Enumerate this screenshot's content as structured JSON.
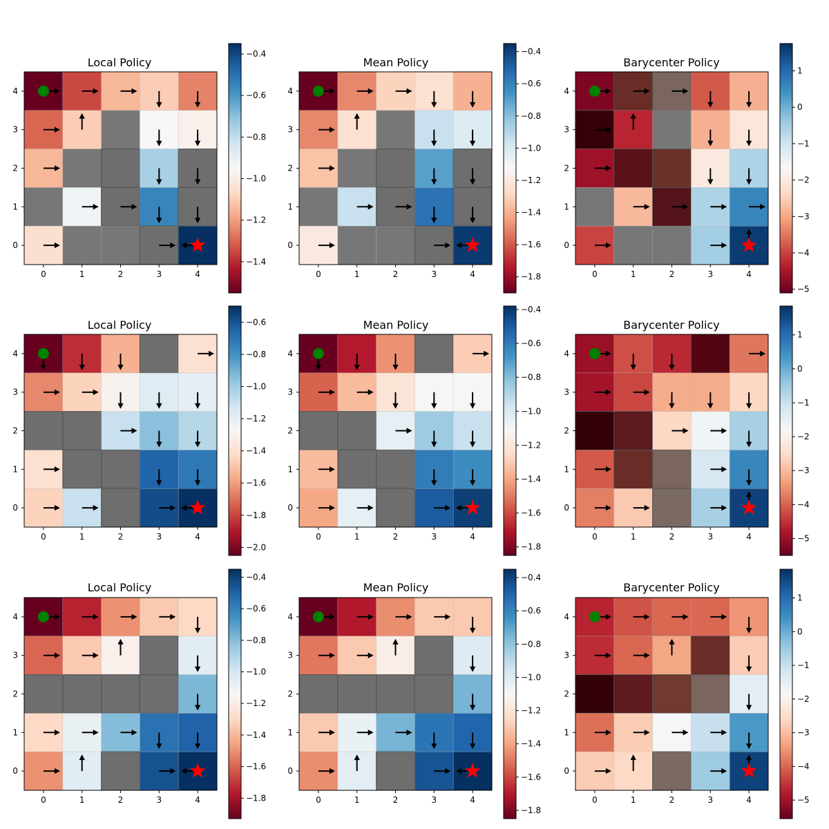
{
  "chart_data": [
    {
      "type": "heatmap",
      "title": "Local Policy",
      "xticks": [
        "0",
        "1",
        "2",
        "3",
        "4"
      ],
      "yticks": [
        "0",
        "1",
        "2",
        "3",
        "4"
      ],
      "colorbar": {
        "range": [
          -1.55,
          -0.35
        ],
        "ticks": [
          "-0.4",
          "-0.6",
          "-0.8",
          "-1.0",
          "-1.2",
          "-1.4"
        ],
        "colormap": "RdBu"
      },
      "grid_rows_top_to_bottom": [
        [
          -1.55,
          -1.35,
          -1.15,
          -1.1,
          -1.25
        ],
        [
          -1.3,
          -1.1,
          null,
          -0.95,
          -0.98
        ],
        [
          -1.15,
          null,
          null,
          -0.75,
          -0.8
        ],
        [
          null,
          -0.92,
          -0.7,
          -0.55,
          -0.55
        ],
        [
          -1.05,
          null,
          null,
          -0.4,
          -0.35
        ]
      ],
      "arrows_rows_top_to_bottom": [
        [
          "right",
          "right",
          "right",
          "down",
          "down"
        ],
        [
          "right",
          "up",
          "",
          "down",
          "down"
        ],
        [
          "right",
          "",
          "",
          "down",
          "down"
        ],
        [
          "",
          "right",
          "right",
          "down",
          "down"
        ],
        [
          "right",
          "",
          "",
          "right",
          "left"
        ]
      ],
      "walls": [
        [
          3,
          0
        ],
        [
          2,
          1
        ],
        [
          2,
          2
        ],
        [
          4,
          1
        ],
        [
          4,
          2
        ]
      ],
      "start": [
        0,
        4
      ],
      "goal": [
        4,
        0
      ]
    },
    {
      "type": "heatmap",
      "title": "Mean Policy",
      "xticks": [
        "0",
        "1",
        "2",
        "3",
        "4"
      ],
      "yticks": [
        "0",
        "1",
        "2",
        "3",
        "4"
      ],
      "colorbar": {
        "range": [
          -1.9,
          -0.35
        ],
        "ticks": [
          "-0.4",
          "-0.6",
          "-0.8",
          "-1.0",
          "-1.2",
          "-1.4",
          "-1.6",
          "-1.8"
        ],
        "colormap": "RdBu"
      },
      "grid_rows_top_to_bottom": [
        [
          -1.9,
          -1.5,
          -1.3,
          -1.25,
          -1.4
        ],
        [
          -1.5,
          -1.25,
          null,
          -0.95,
          -1.02
        ],
        [
          -1.35,
          null,
          null,
          -0.7,
          -0.78
        ],
        [
          null,
          -0.95,
          -0.72,
          -0.55,
          -0.55
        ],
        [
          -1.2,
          null,
          null,
          -0.45,
          -0.38
        ]
      ],
      "arrows_rows_top_to_bottom": [
        [
          "right",
          "right",
          "right",
          "down",
          "down"
        ],
        [
          "right",
          "up",
          "",
          "down",
          "down"
        ],
        [
          "right",
          "",
          "",
          "down",
          "down"
        ],
        [
          "",
          "right",
          "right",
          "down",
          "down"
        ],
        [
          "right",
          "",
          "",
          "right",
          "left"
        ]
      ],
      "walls": [
        [
          3,
          0
        ],
        [
          2,
          1
        ],
        [
          2,
          2
        ],
        [
          4,
          1
        ],
        [
          4,
          2
        ]
      ],
      "start": [
        0,
        4
      ],
      "goal": [
        4,
        0
      ]
    },
    {
      "type": "heatmap",
      "title": "Barycenter Policy",
      "xticks": [
        "0",
        "1",
        "2",
        "3",
        "4"
      ],
      "yticks": [
        "0",
        "1",
        "2",
        "3",
        "4"
      ],
      "colorbar": {
        "range": [
          -5.1,
          1.75
        ],
        "ticks": [
          "1",
          "0",
          "-1",
          "-2",
          "-3",
          "-4",
          "-5"
        ],
        "colormap": "RdBu"
      },
      "grid_rows_top_to_bottom": [
        [
          -4.9,
          -4.8,
          -4.5,
          -3.8,
          -2.9
        ],
        [
          -4.8,
          -4.3,
          null,
          -2.9,
          -2.1
        ],
        [
          -4.6,
          null,
          null,
          -2.0,
          -0.6
        ],
        [
          null,
          -2.8,
          -2.0,
          -0.6,
          0.6
        ],
        [
          -4.0,
          null,
          null,
          -0.5,
          1.6
        ]
      ],
      "arrows_rows_top_to_bottom": [
        [
          "right",
          "right",
          "right",
          "down",
          "down"
        ],
        [
          "right",
          "up",
          "",
          "down",
          "down"
        ],
        [
          "right",
          "",
          "",
          "down",
          "down"
        ],
        [
          "",
          "right",
          "right",
          "right",
          "right"
        ],
        [
          "right",
          "",
          "",
          "right",
          "up"
        ]
      ],
      "walls": [
        [
          2,
          1
        ],
        [
          1,
          2
        ],
        [
          2,
          2
        ],
        [
          0,
          3
        ],
        [
          1,
          4
        ],
        [
          2,
          4
        ]
      ],
      "wall_colors": {
        "2,1": "#55141b",
        "1,2": "#5a1218",
        "2,2": "#6b3228",
        "0,3": "#350008",
        "1,4": "#6a2c26",
        "2,4": "#7a665e"
      },
      "start": [
        0,
        4
      ],
      "goal": [
        4,
        0
      ]
    },
    {
      "type": "heatmap",
      "title": "Local Policy",
      "xticks": [
        "0",
        "1",
        "2",
        "3",
        "4"
      ],
      "yticks": [
        "0",
        "1",
        "2",
        "3",
        "4"
      ],
      "colorbar": {
        "range": [
          -2.05,
          -0.5
        ],
        "ticks": [
          "-0.6",
          "-0.8",
          "-1.0",
          "-1.2",
          "-1.4",
          "-1.6",
          "-1.8",
          "-2.0"
        ],
        "colormap": "RdBu"
      },
      "grid_rows_top_to_bottom": [
        [
          -2.05,
          -1.85,
          -1.55,
          null,
          -1.4
        ],
        [
          -1.65,
          -1.45,
          -1.3,
          -1.18,
          -1.2
        ],
        [
          null,
          null,
          -1.1,
          -0.95,
          -1.05
        ],
        [
          -1.4,
          null,
          null,
          -0.65,
          -0.72
        ],
        [
          -1.45,
          -1.1,
          null,
          -0.58,
          -0.5
        ]
      ],
      "arrows_rows_top_to_bottom": [
        [
          "down",
          "down",
          "down",
          "",
          "right"
        ],
        [
          "right",
          "right",
          "down",
          "down",
          "down"
        ],
        [
          "",
          "",
          "right",
          "down",
          "down"
        ],
        [
          "right",
          "",
          "",
          "down",
          "down"
        ],
        [
          "right",
          "right",
          "",
          "right",
          "left"
        ]
      ],
      "walls": [
        [
          3,
          4
        ],
        [
          0,
          2
        ],
        [
          1,
          2
        ],
        [
          1,
          1
        ],
        [
          2,
          1
        ],
        [
          2,
          0
        ]
      ],
      "start": [
        0,
        4
      ],
      "goal": [
        4,
        0
      ]
    },
    {
      "type": "heatmap",
      "title": "Mean Policy",
      "xticks": [
        "0",
        "1",
        "2",
        "3",
        "4"
      ],
      "yticks": [
        "0",
        "1",
        "2",
        "3",
        "4"
      ],
      "colorbar": {
        "range": [
          -1.85,
          -0.38
        ],
        "ticks": [
          "-0.4",
          "-0.6",
          "-0.8",
          "-1.0",
          "-1.2",
          "-1.4",
          "-1.6",
          "-1.8"
        ],
        "colormap": "RdBu"
      },
      "grid_rows_top_to_bottom": [
        [
          -1.85,
          -1.7,
          -1.45,
          null,
          -1.3
        ],
        [
          -1.55,
          -1.35,
          -1.22,
          -1.12,
          -1.12
        ],
        [
          null,
          null,
          -1.05,
          -0.85,
          -0.95
        ],
        [
          -1.35,
          null,
          null,
          -0.6,
          -0.65
        ],
        [
          -1.4,
          -1.05,
          null,
          -0.5,
          -0.42
        ]
      ],
      "arrows_rows_top_to_bottom": [
        [
          "down",
          "down",
          "down",
          "",
          "right"
        ],
        [
          "right",
          "right",
          "down",
          "down",
          "down"
        ],
        [
          "",
          "",
          "right",
          "down",
          "down"
        ],
        [
          "right",
          "",
          "",
          "down",
          "down"
        ],
        [
          "right",
          "right",
          "",
          "right",
          "left"
        ]
      ],
      "walls": [
        [
          3,
          4
        ],
        [
          0,
          2
        ],
        [
          1,
          2
        ],
        [
          1,
          1
        ],
        [
          2,
          1
        ],
        [
          2,
          0
        ]
      ],
      "start": [
        0,
        4
      ],
      "goal": [
        4,
        0
      ]
    },
    {
      "type": "heatmap",
      "title": "Barycenter Policy",
      "xticks": [
        "0",
        "1",
        "2",
        "3",
        "4"
      ],
      "yticks": [
        "0",
        "1",
        "2",
        "3",
        "4"
      ],
      "colorbar": {
        "range": [
          -5.5,
          1.85
        ],
        "ticks": [
          "1",
          "0",
          "-1",
          "-2",
          "-3",
          "-4",
          "-5"
        ],
        "colormap": "RdBu"
      },
      "grid_rows_top_to_bottom": [
        [
          -5.0,
          -4.2,
          -4.6,
          null,
          -3.8
        ],
        [
          -4.9,
          -4.3,
          -3.2,
          -3.2,
          -2.6
        ],
        [
          null,
          null,
          -2.6,
          -1.7,
          -0.6
        ],
        [
          -4.1,
          null,
          null,
          -1.2,
          0.6
        ],
        [
          -3.7,
          -2.8,
          null,
          -0.6,
          1.6
        ]
      ],
      "arrows_rows_top_to_bottom": [
        [
          "right",
          "down",
          "down",
          "",
          "right"
        ],
        [
          "right",
          "right",
          "down",
          "down",
          "down"
        ],
        [
          "",
          "",
          "right",
          "right",
          "down"
        ],
        [
          "right",
          "",
          "",
          "right",
          "down"
        ],
        [
          "right",
          "right",
          "",
          "right",
          "up"
        ]
      ],
      "walls": [
        [
          3,
          4
        ],
        [
          0,
          2
        ],
        [
          1,
          2
        ],
        [
          1,
          1
        ],
        [
          2,
          1
        ],
        [
          2,
          0
        ]
      ],
      "wall_colors": {
        "3,4": "#520510",
        "0,2": "#330008",
        "1,2": "#5e1a1f",
        "1,1": "#6a2c26",
        "2,1": "#7a665e",
        "2,0": "#7a6a62"
      },
      "start": [
        0,
        4
      ],
      "goal": [
        4,
        0
      ]
    },
    {
      "type": "heatmap",
      "title": "Local Policy",
      "xticks": [
        "0",
        "1",
        "2",
        "3",
        "4"
      ],
      "yticks": [
        "0",
        "1",
        "2",
        "3",
        "4"
      ],
      "colorbar": {
        "range": [
          -1.93,
          -0.35
        ],
        "ticks": [
          "-0.4",
          "-0.6",
          "-0.8",
          "-1.0",
          "-1.2",
          "-1.4",
          "-1.6",
          "-1.8"
        ],
        "colormap": "RdBu"
      },
      "grid_rows_top_to_bottom": [
        [
          -1.93,
          -1.75,
          -1.5,
          -1.35,
          -1.3
        ],
        [
          -1.6,
          -1.35,
          -1.18,
          null,
          -1.05
        ],
        [
          null,
          null,
          null,
          null,
          -0.78
        ],
        [
          -1.3,
          -1.08,
          -0.8,
          -0.55,
          -0.5
        ],
        [
          -1.5,
          -1.05,
          null,
          -0.45,
          -0.35
        ]
      ],
      "arrows_rows_top_to_bottom": [
        [
          "right",
          "right",
          "right",
          "right",
          "down"
        ],
        [
          "right",
          "right",
          "up",
          "",
          "down"
        ],
        [
          "",
          "",
          "",
          "",
          "down"
        ],
        [
          "right",
          "right",
          "right",
          "down",
          "down"
        ],
        [
          "right",
          "up",
          "",
          "right",
          "left"
        ]
      ],
      "walls": [
        [
          3,
          3
        ],
        [
          0,
          2
        ],
        [
          1,
          2
        ],
        [
          2,
          2
        ],
        [
          3,
          2
        ],
        [
          2,
          0
        ]
      ],
      "start": [
        0,
        4
      ],
      "goal": [
        4,
        0
      ]
    },
    {
      "type": "heatmap",
      "title": "Mean Policy",
      "xticks": [
        "0",
        "1",
        "2",
        "3",
        "4"
      ],
      "yticks": [
        "0",
        "1",
        "2",
        "3",
        "4"
      ],
      "colorbar": {
        "range": [
          -1.85,
          -0.35
        ],
        "ticks": [
          "-0.4",
          "-0.6",
          "-0.8",
          "-1.0",
          "-1.2",
          "-1.4",
          "-1.6",
          "-1.8"
        ],
        "colormap": "RdBu"
      },
      "grid_rows_top_to_bottom": [
        [
          -1.85,
          -1.7,
          -1.45,
          -1.3,
          -1.3
        ],
        [
          -1.5,
          -1.3,
          -1.15,
          null,
          -1.0
        ],
        [
          null,
          null,
          null,
          null,
          -0.75
        ],
        [
          -1.3,
          -1.05,
          -0.75,
          -0.55,
          -0.5
        ],
        [
          -1.45,
          -1.02,
          null,
          -0.45,
          -0.35
        ]
      ],
      "arrows_rows_top_to_bottom": [
        [
          "right",
          "right",
          "right",
          "right",
          "down"
        ],
        [
          "right",
          "right",
          "up",
          "",
          "down"
        ],
        [
          "",
          "",
          "",
          "",
          "down"
        ],
        [
          "right",
          "right",
          "right",
          "down",
          "down"
        ],
        [
          "right",
          "up",
          "",
          "right",
          "left"
        ]
      ],
      "walls": [
        [
          3,
          3
        ],
        [
          0,
          2
        ],
        [
          1,
          2
        ],
        [
          2,
          2
        ],
        [
          3,
          2
        ],
        [
          2,
          0
        ]
      ],
      "start": [
        0,
        4
      ],
      "goal": [
        4,
        0
      ]
    },
    {
      "type": "heatmap",
      "title": "Barycenter Policy",
      "xticks": [
        "0",
        "1",
        "2",
        "3",
        "4"
      ],
      "yticks": [
        "0",
        "1",
        "2",
        "3",
        "4"
      ],
      "colorbar": {
        "range": [
          -5.55,
          1.85
        ],
        "ticks": [
          "1",
          "0",
          "-1",
          "-2",
          "-3",
          "-4",
          "-5"
        ],
        "colormap": "RdBu"
      },
      "grid_rows_top_to_bottom": [
        [
          -4.7,
          -4.2,
          -4.0,
          -4.0,
          -3.5
        ],
        [
          -4.6,
          -4.0,
          -3.3,
          null,
          -2.8
        ],
        [
          null,
          null,
          null,
          null,
          -1.5
        ],
        [
          -3.9,
          -2.8,
          -1.8,
          -1.0,
          0.3
        ],
        [
          -2.8,
          -2.6,
          null,
          -0.5,
          1.6
        ]
      ],
      "arrows_rows_top_to_bottom": [
        [
          "right",
          "right",
          "right",
          "right",
          "down"
        ],
        [
          "right",
          "right",
          "up",
          "",
          "down"
        ],
        [
          "",
          "",
          "",
          "",
          "down"
        ],
        [
          "right",
          "right",
          "right",
          "right",
          "down"
        ],
        [
          "right",
          "up",
          "",
          "right",
          "up"
        ]
      ],
      "walls": [
        [
          3,
          3
        ],
        [
          0,
          2
        ],
        [
          1,
          2
        ],
        [
          2,
          2
        ],
        [
          3,
          2
        ],
        [
          2,
          0
        ]
      ],
      "wall_colors": {
        "3,3": "#6a2c26",
        "0,2": "#330008",
        "1,2": "#5e1a1f",
        "2,2": "#713a2e",
        "3,2": "#7a665e",
        "2,0": "#7a6a62"
      },
      "start": [
        0,
        4
      ],
      "goal": [
        4,
        0
      ]
    }
  ]
}
